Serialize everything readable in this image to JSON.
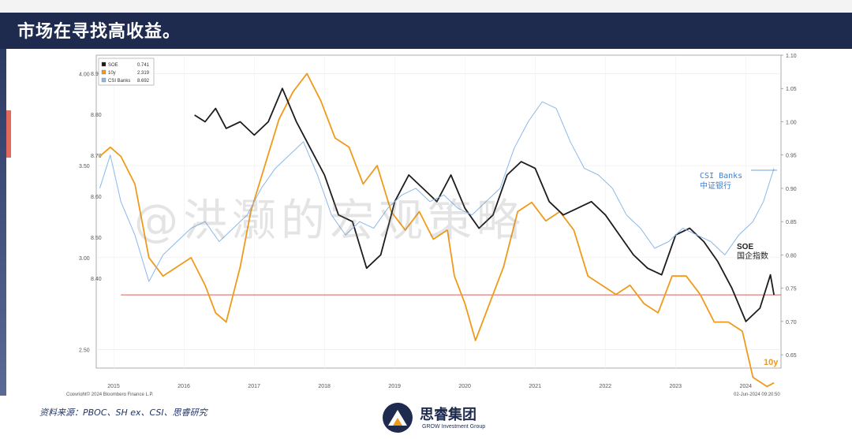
{
  "header": {
    "title": "市场在寻找高收益。"
  },
  "footer": {
    "source": "资料来源：PBOC、SH ex、CSI、思睿研究",
    "brand_cn": "思睿集团",
    "brand_en": "GROW Investment Group"
  },
  "watermark": {
    "text": "@洪灏的宏观策略"
  },
  "colors": {
    "header_bg": "#1f2b4e",
    "soe": "#1c1c1c",
    "ten_y": "#f09a1a",
    "csi": "#8bb8ea",
    "ref_line": "#e05a5a"
  },
  "chart_data": {
    "type": "line",
    "copyright": "Copyright© 2024 Bloomberg Finance L.P.",
    "timestamp": "02-Jun-2024 09:20:50",
    "x_ticks": [
      "2015",
      "2016",
      "2017",
      "2018",
      "2019",
      "2020",
      "2021",
      "2022",
      "2023",
      "2024"
    ],
    "xlim": [
      2014.75,
      2024.5
    ],
    "left_axis_ticks": [
      "4.00",
      "3.50",
      "3.00",
      "2.50"
    ],
    "left_axis_range": [
      2.4,
      4.1
    ],
    "inner_axis_ticks": [
      "8.90",
      "8.80",
      "8.70",
      "8.60",
      "8.50",
      "8.40"
    ],
    "right_axis_ticks": [
      "1.10",
      "1.05",
      "1.00",
      "0.95",
      "0.90",
      "0.85",
      "0.80",
      "0.75",
      "0.70",
      "0.65"
    ],
    "right_axis_range": [
      0.63,
      1.1
    ],
    "legend": [
      {
        "name": "SOE",
        "value": "0.741",
        "color": "#1c1c1c"
      },
      {
        "name": "10y",
        "value": "2.319",
        "color": "#f09a1a"
      },
      {
        "name": "CSI Banks",
        "value": "8.692",
        "color": "#8bb8ea"
      }
    ],
    "annotations": {
      "csi_en": "CSI Banks",
      "csi_cn": "中证银行",
      "soe_en": "SOE",
      "soe_cn": "国企指数",
      "ten_y": "10y"
    },
    "reference_line": 0.74,
    "series": [
      {
        "name": "10y",
        "axis": "left",
        "color": "#f09a1a",
        "x": [
          2014.8,
          2014.95,
          2015.1,
          2015.3,
          2015.5,
          2015.7,
          2015.9,
          2016.1,
          2016.3,
          2016.45,
          2016.6,
          2016.8,
          2016.95,
          2017.15,
          2017.35,
          2017.55,
          2017.75,
          2017.95,
          2018.15,
          2018.35,
          2018.55,
          2018.75,
          2018.95,
          2019.15,
          2019.35,
          2019.55,
          2019.75,
          2019.85,
          2020.0,
          2020.15,
          2020.35,
          2020.55,
          2020.75,
          2020.95,
          2021.15,
          2021.35,
          2021.55,
          2021.75,
          2021.95,
          2022.15,
          2022.35,
          2022.55,
          2022.75,
          2022.95,
          2023.15,
          2023.35,
          2023.55,
          2023.75,
          2023.95,
          2024.1,
          2024.3,
          2024.4
        ],
        "values": [
          3.55,
          3.6,
          3.55,
          3.4,
          3.0,
          2.9,
          2.95,
          3.0,
          2.85,
          2.7,
          2.65,
          2.95,
          3.25,
          3.5,
          3.75,
          3.9,
          4.0,
          3.85,
          3.65,
          3.6,
          3.4,
          3.5,
          3.25,
          3.15,
          3.25,
          3.1,
          3.15,
          2.9,
          2.75,
          2.55,
          2.75,
          2.95,
          3.25,
          3.3,
          3.2,
          3.25,
          3.15,
          2.9,
          2.85,
          2.8,
          2.85,
          2.75,
          2.7,
          2.9,
          2.9,
          2.8,
          2.65,
          2.65,
          2.6,
          2.35,
          2.3,
          2.32
        ]
      },
      {
        "name": "SOE",
        "axis": "right",
        "color": "#1c1c1c",
        "x": [
          2016.15,
          2016.3,
          2016.45,
          2016.6,
          2016.8,
          2017.0,
          2017.2,
          2017.4,
          2017.6,
          2017.8,
          2018.0,
          2018.2,
          2018.4,
          2018.6,
          2018.8,
          2019.0,
          2019.2,
          2019.4,
          2019.6,
          2019.8,
          2020.0,
          2020.2,
          2020.4,
          2020.6,
          2020.8,
          2021.0,
          2021.2,
          2021.4,
          2021.6,
          2021.8,
          2022.0,
          2022.2,
          2022.4,
          2022.6,
          2022.8,
          2023.0,
          2023.2,
          2023.4,
          2023.6,
          2023.8,
          2024.0,
          2024.2,
          2024.35,
          2024.4
        ],
        "values": [
          1.01,
          1.0,
          1.02,
          0.99,
          1.0,
          0.98,
          1.0,
          1.05,
          1.0,
          0.96,
          0.92,
          0.86,
          0.85,
          0.78,
          0.8,
          0.88,
          0.92,
          0.9,
          0.88,
          0.92,
          0.87,
          0.84,
          0.86,
          0.92,
          0.94,
          0.93,
          0.88,
          0.86,
          0.87,
          0.88,
          0.86,
          0.83,
          0.8,
          0.78,
          0.77,
          0.83,
          0.84,
          0.82,
          0.79,
          0.75,
          0.7,
          0.72,
          0.77,
          0.74
        ]
      },
      {
        "name": "CSI Banks",
        "axis": "right",
        "color": "#8bb8ea",
        "x": [
          2014.8,
          2014.95,
          2015.1,
          2015.3,
          2015.5,
          2015.7,
          2015.9,
          2016.1,
          2016.3,
          2016.5,
          2016.7,
          2016.9,
          2017.1,
          2017.3,
          2017.5,
          2017.7,
          2017.9,
          2018.1,
          2018.3,
          2018.5,
          2018.7,
          2018.9,
          2019.1,
          2019.3,
          2019.5,
          2019.7,
          2019.9,
          2020.1,
          2020.3,
          2020.5,
          2020.7,
          2020.9,
          2021.1,
          2021.3,
          2021.5,
          2021.7,
          2021.9,
          2022.1,
          2022.3,
          2022.5,
          2022.7,
          2022.9,
          2023.1,
          2023.3,
          2023.5,
          2023.7,
          2023.9,
          2024.1,
          2024.25,
          2024.4
        ],
        "values": [
          0.9,
          0.95,
          0.88,
          0.83,
          0.76,
          0.8,
          0.82,
          0.84,
          0.85,
          0.82,
          0.84,
          0.86,
          0.9,
          0.93,
          0.95,
          0.97,
          0.92,
          0.86,
          0.83,
          0.85,
          0.84,
          0.87,
          0.89,
          0.9,
          0.88,
          0.89,
          0.87,
          0.86,
          0.88,
          0.9,
          0.96,
          1.0,
          1.03,
          1.02,
          0.97,
          0.93,
          0.92,
          0.9,
          0.86,
          0.84,
          0.81,
          0.82,
          0.84,
          0.83,
          0.82,
          0.8,
          0.83,
          0.85,
          0.88,
          0.93
        ]
      }
    ]
  }
}
